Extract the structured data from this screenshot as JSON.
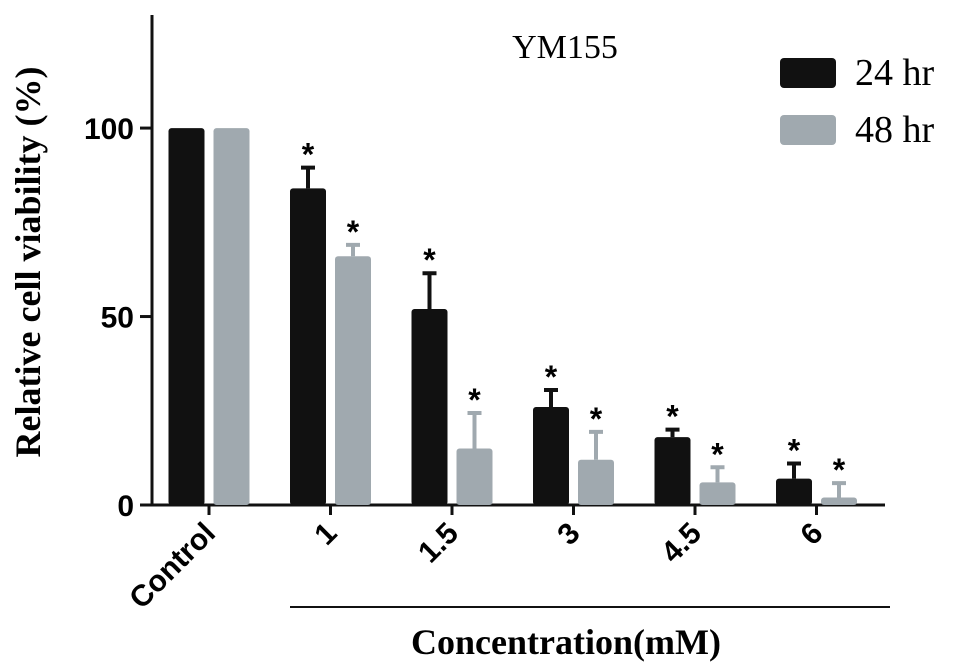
{
  "chart_data": {
    "type": "bar",
    "title": "YM155",
    "y_label": "Relative cell viability (%)",
    "x_label": "Concentration(mM)",
    "categories": [
      "Control",
      "1",
      "1.5",
      "3",
      "4.5",
      "6"
    ],
    "series": [
      {
        "name": "24 hr",
        "color": "#111111",
        "values": [
          100,
          84,
          52,
          26,
          18,
          7
        ],
        "errors": [
          null,
          5.5,
          9.5,
          4.5,
          2,
          4
        ],
        "annotations": [
          null,
          "*",
          "*",
          "*",
          "*",
          "*"
        ]
      },
      {
        "name": "48 hr",
        "color": "#a0a9af",
        "values": [
          100,
          66,
          15,
          12,
          6,
          2
        ],
        "errors": [
          null,
          3,
          9.4,
          7.4,
          4,
          3.8
        ],
        "annotations": [
          null,
          "*",
          "*",
          "*",
          "*",
          "*"
        ]
      }
    ],
    "ylim": [
      0,
      130
    ],
    "yticks": [
      0,
      50,
      100
    ],
    "legend": "top-right"
  }
}
